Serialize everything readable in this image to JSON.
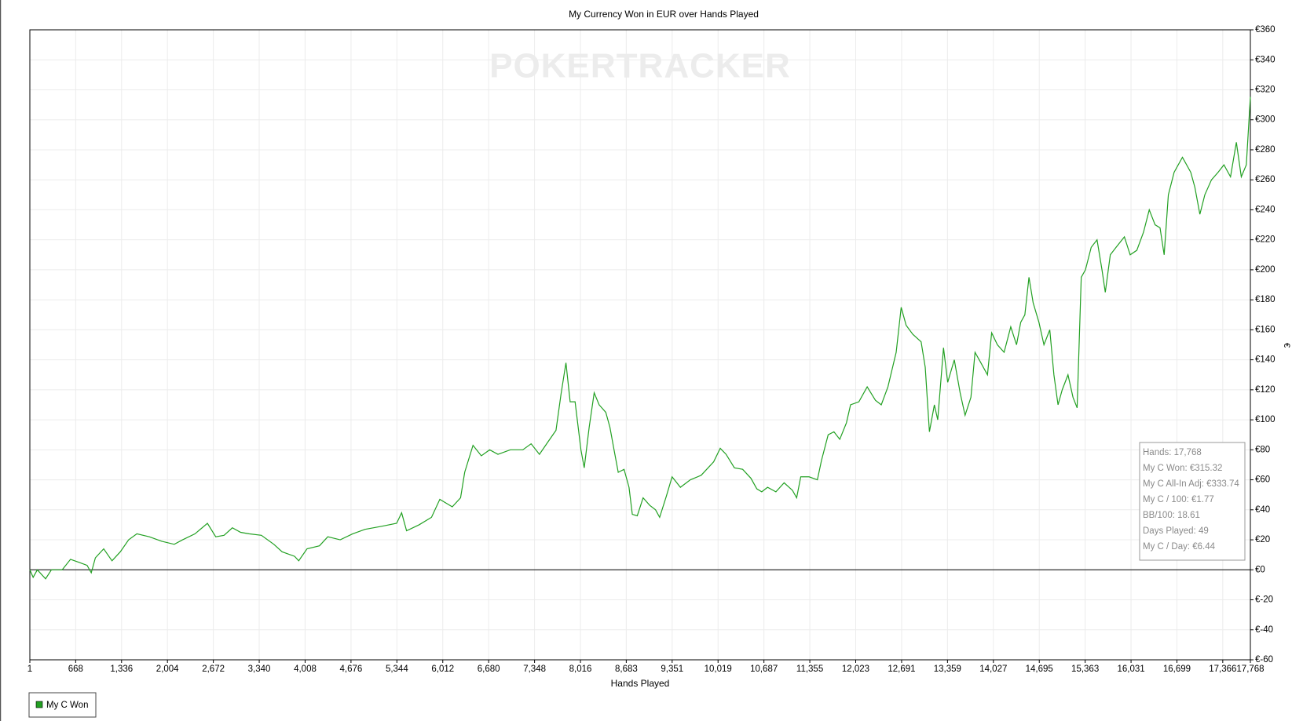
{
  "chart_data": {
    "type": "line",
    "title": "My Currency Won in EUR over Hands Played",
    "watermark": "POKERTRACKER",
    "x_label": "Hands Played",
    "y_label": "€",
    "xlim": [
      1,
      17768
    ],
    "ylim": [
      -60,
      360
    ],
    "xticks": [
      1,
      {
        "value": 668,
        "label": "668"
      },
      {
        "value": 1336,
        "label": "1,336"
      },
      {
        "value": 2004,
        "label": "2,004"
      },
      {
        "value": 2672,
        "label": "2,672"
      },
      {
        "value": 3340,
        "label": "3,340"
      },
      {
        "value": 4008,
        "label": "4,008"
      },
      {
        "value": 4676,
        "label": "4,676"
      },
      {
        "value": 5344,
        "label": "5,344"
      },
      {
        "value": 6012,
        "label": "6,012"
      },
      {
        "value": 6680,
        "label": "6,680"
      },
      {
        "value": 7348,
        "label": "7,348"
      },
      {
        "value": 8016,
        "label": "8,016"
      },
      {
        "value": 8683,
        "label": "8,683"
      },
      {
        "value": 9351,
        "label": "9,351"
      },
      {
        "value": 10019,
        "label": "10,019"
      },
      {
        "value": 10687,
        "label": "10,687"
      },
      {
        "value": 11355,
        "label": "11,355"
      },
      {
        "value": 12023,
        "label": "12,023"
      },
      {
        "value": 12691,
        "label": "12,691"
      },
      {
        "value": 13359,
        "label": "13,359"
      },
      {
        "value": 14027,
        "label": "14,027"
      },
      {
        "value": 14695,
        "label": "14,695"
      },
      {
        "value": 15363,
        "label": "15,363"
      },
      {
        "value": 16031,
        "label": "16,031"
      },
      {
        "value": 16699,
        "label": "16,699"
      },
      {
        "value": 17366,
        "label": "17,366"
      },
      {
        "value": 17768,
        "label": "17,768"
      }
    ],
    "yticks": [
      {
        "value": -60,
        "label": "€-60"
      },
      {
        "value": -40,
        "label": "€-40"
      },
      {
        "value": -20,
        "label": "€-20"
      },
      {
        "value": 0,
        "label": "€0"
      },
      {
        "value": 20,
        "label": "€20"
      },
      {
        "value": 40,
        "label": "€40"
      },
      {
        "value": 60,
        "label": "€60"
      },
      {
        "value": 80,
        "label": "€80"
      },
      {
        "value": 100,
        "label": "€100"
      },
      {
        "value": 120,
        "label": "€120"
      },
      {
        "value": 140,
        "label": "€140"
      },
      {
        "value": 160,
        "label": "€160"
      },
      {
        "value": 180,
        "label": "€180"
      },
      {
        "value": 200,
        "label": "€200"
      },
      {
        "value": 220,
        "label": "€220"
      },
      {
        "value": 240,
        "label": "€240"
      },
      {
        "value": 260,
        "label": "€260"
      },
      {
        "value": 280,
        "label": "€280"
      },
      {
        "value": 300,
        "label": "€300"
      },
      {
        "value": 320,
        "label": "€320"
      },
      {
        "value": 340,
        "label": "€340"
      },
      {
        "value": 360,
        "label": "€360"
      }
    ],
    "grid": true,
    "zero_line": true,
    "x": [
      1,
      49,
      110,
      230,
      315,
      472,
      593,
      714,
      834,
      895,
      955,
      1076,
      1197,
      1318,
      1439,
      1559,
      1740,
      1922,
      2103,
      2224,
      2405,
      2586,
      2707,
      2828,
      2949,
      3069,
      3190,
      3371,
      3553,
      3673,
      3855,
      3915,
      4036,
      4217,
      4338,
      4519,
      4700,
      4881,
      5123,
      5340,
      5413,
      5485,
      5667,
      5848,
      5969,
      6150,
      6271,
      6331,
      6452,
      6573,
      6694,
      6815,
      6996,
      7177,
      7298,
      7419,
      7539,
      7660,
      7733,
      7805,
      7866,
      7938,
      8023,
      8071,
      8143,
      8216,
      8288,
      8385,
      8445,
      8505,
      8566,
      8651,
      8723,
      8771,
      8843,
      8928,
      9024,
      9109,
      9169,
      9266,
      9350,
      9471,
      9616,
      9773,
      9955,
      10051,
      10136,
      10257,
      10377,
      10498,
      10583,
      10655,
      10740,
      10861,
      10981,
      11102,
      11163,
      11223,
      11344,
      11465,
      11525,
      11622,
      11706,
      11791,
      11888,
      11948,
      12069,
      12190,
      12310,
      12395,
      12492,
      12612,
      12685,
      12757,
      12854,
      12975,
      13035,
      13096,
      13168,
      13217,
      13301,
      13362,
      13458,
      13543,
      13615,
      13700,
      13760,
      13845,
      13941,
      14002,
      14086,
      14183,
      14280,
      14364,
      14425,
      14485,
      14545,
      14606,
      14690,
      14763,
      14848,
      14908,
      14968,
      15029,
      15113,
      15186,
      15246,
      15306,
      15367,
      15451,
      15536,
      15608,
      15656,
      15729,
      15813,
      15934,
      16018,
      16115,
      16212,
      16296,
      16381,
      16453,
      16513,
      16574,
      16658,
      16779,
      16900,
      16960,
      17033,
      17105,
      17202,
      17298,
      17383,
      17479,
      17564,
      17636,
      17709,
      17768
    ],
    "series": [
      {
        "name": "My C Won",
        "color": "#22a022",
        "values": [
          0,
          -5,
          0,
          -6,
          0,
          0,
          7,
          5,
          3,
          -2,
          8,
          14,
          6,
          12,
          20,
          24,
          22,
          19,
          17,
          20,
          24,
          31,
          22,
          23,
          28,
          25,
          24,
          23,
          17,
          12,
          9,
          6,
          14,
          16,
          22,
          20,
          24,
          27,
          29,
          31,
          38,
          26,
          30,
          35,
          47,
          42,
          48,
          65,
          83,
          76,
          80,
          77,
          80,
          80,
          84,
          77,
          85,
          93,
          117,
          138,
          112,
          112,
          80,
          68,
          95,
          118,
          110,
          105,
          95,
          80,
          65,
          67,
          55,
          37,
          36,
          48,
          43,
          40,
          35,
          49,
          62,
          55,
          60,
          63,
          72,
          81,
          77,
          68,
          67,
          61,
          54,
          52,
          55,
          52,
          58,
          53,
          48,
          62,
          62,
          60,
          73,
          90,
          92,
          87,
          98,
          110,
          112,
          122,
          113,
          110,
          122,
          145,
          175,
          163,
          157,
          152,
          135,
          92,
          110,
          100,
          148,
          125,
          140,
          118,
          103,
          115,
          145,
          138,
          130,
          158,
          150,
          145,
          162,
          150,
          165,
          170,
          195,
          178,
          165,
          150,
          160,
          130,
          110,
          120,
          130,
          115,
          108,
          195,
          200,
          215,
          220,
          200,
          185,
          210,
          215,
          222,
          210,
          213,
          225,
          240,
          230,
          228,
          210,
          250,
          265,
          275,
          265,
          255,
          237,
          250,
          260,
          265,
          270,
          262,
          285,
          262,
          270,
          315.32
        ]
      }
    ],
    "stats": [
      "Hands: 17,768",
      "My C Won: €315.32",
      "My C All-In Adj: €333.74",
      "My C / 100: €1.77",
      "BB/100: 18.61",
      "Days Played: 49",
      "My C / Day: €6.44"
    ]
  }
}
